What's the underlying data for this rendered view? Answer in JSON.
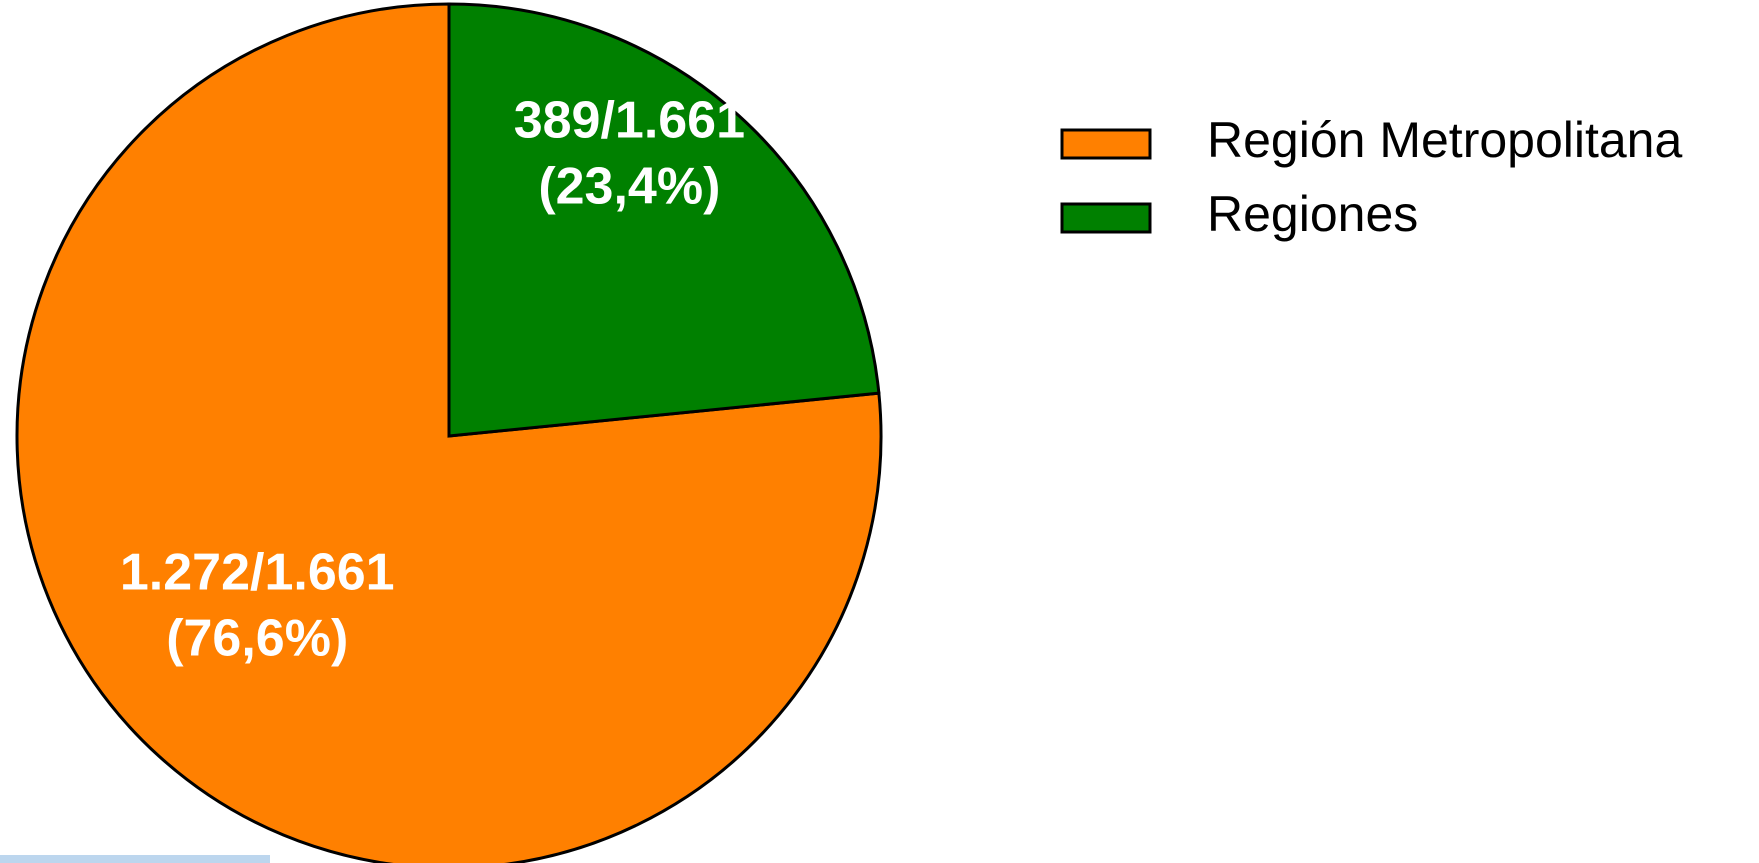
{
  "chart_data": {
    "type": "pie",
    "categories": [
      "Región Metropolitana",
      "Regiones"
    ],
    "values": [
      1272,
      389
    ],
    "value_labels": [
      [
        "1.272/1.661",
        "(76,6%)"
      ],
      [
        "389/1.661",
        "(23,4%)"
      ]
    ],
    "colors": [
      "#ff8000",
      "#008000"
    ],
    "legend": "right"
  }
}
